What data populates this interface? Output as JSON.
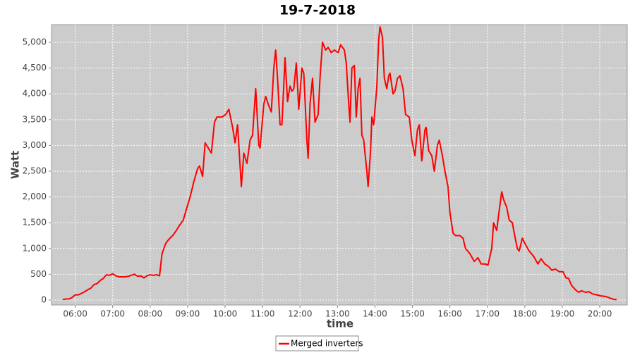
{
  "chart_data": {
    "type": "line",
    "title": "19-7-2018",
    "x_label": "time",
    "y_label": "Watt",
    "x": [
      "05:40",
      "05:45",
      "05:50",
      "05:55",
      "06:00",
      "06:05",
      "06:10",
      "06:15",
      "06:20",
      "06:25",
      "06:30",
      "06:35",
      "06:40",
      "06:45",
      "06:50",
      "06:55",
      "07:00",
      "07:05",
      "07:10",
      "07:15",
      "07:20",
      "07:25",
      "07:30",
      "07:35",
      "07:40",
      "07:45",
      "07:50",
      "07:55",
      "08:00",
      "08:05",
      "08:10",
      "08:15",
      "08:19",
      "08:25",
      "08:30",
      "08:36",
      "08:42",
      "08:47",
      "08:53",
      "08:59",
      "09:04",
      "09:10",
      "09:16",
      "09:19",
      "09:24",
      "09:28",
      "09:33",
      "09:38",
      "09:43",
      "09:47",
      "09:55",
      "10:01",
      "10:06",
      "10:12",
      "10:16",
      "10:20",
      "10:26",
      "10:30",
      "10:35",
      "10:40",
      "10:44",
      "10:49",
      "10:54",
      "10:56",
      "11:02",
      "11:05",
      "11:09",
      "11:14",
      "11:18",
      "11:21",
      "11:24",
      "11:28",
      "11:31",
      "11:36",
      "11:40",
      "11:44",
      "11:47",
      "11:50",
      "11:54",
      "11:58",
      "12:03",
      "12:06",
      "12:11",
      "12:13",
      "12:16",
      "12:20",
      "12:24",
      "12:29",
      "12:32",
      "12:36",
      "12:41",
      "12:45",
      "12:50",
      "12:55",
      "13:01",
      "13:05",
      "13:11",
      "13:14",
      "13:18",
      "13:20",
      "13:23",
      "13:27",
      "13:30",
      "13:33",
      "13:36",
      "13:39",
      "13:42",
      "13:47",
      "13:49",
      "13:53",
      "13:55",
      "13:58",
      "14:03",
      "14:06",
      "14:08",
      "14:12",
      "14:15",
      "14:19",
      "14:22",
      "14:24",
      "14:29",
      "14:32",
      "14:36",
      "14:40",
      "14:45",
      "14:49",
      "14:55",
      "14:59",
      "15:04",
      "15:08",
      "15:11",
      "15:15",
      "15:20",
      "15:22",
      "15:26",
      "15:31",
      "15:35",
      "15:40",
      "15:43",
      "15:48",
      "15:52",
      "15:57",
      "16:00",
      "16:05",
      "16:09",
      "16:16",
      "16:21",
      "16:25",
      "16:32",
      "16:39",
      "16:45",
      "16:50",
      "16:56",
      "17:01",
      "17:07",
      "17:10",
      "17:15",
      "17:18",
      "17:23",
      "17:26",
      "17:31",
      "17:35",
      "17:40",
      "17:43",
      "17:48",
      "17:51",
      "17:56",
      "18:00",
      "18:07",
      "18:14",
      "18:21",
      "18:26",
      "18:32",
      "18:38",
      "18:43",
      "18:49",
      "18:55",
      "19:01",
      "19:06",
      "19:10",
      "19:15",
      "19:21",
      "19:26",
      "19:31",
      "19:37",
      "19:43",
      "19:48",
      "19:55",
      "20:02",
      "20:09",
      "20:16",
      "20:23",
      "20:27"
    ],
    "series": [
      {
        "name": "Merged inverters",
        "color": "#ff0000",
        "values": [
          10,
          20,
          20,
          50,
          100,
          100,
          130,
          160,
          200,
          230,
          300,
          320,
          380,
          420,
          490,
          480,
          510,
          470,
          450,
          450,
          450,
          460,
          480,
          500,
          460,
          470,
          430,
          470,
          490,
          480,
          490,
          470,
          900,
          1100,
          1180,
          1250,
          1350,
          1450,
          1550,
          1800,
          2000,
          2300,
          2550,
          2600,
          2400,
          3050,
          2950,
          2850,
          3450,
          3550,
          3550,
          3600,
          3700,
          3350,
          3050,
          3400,
          2200,
          2850,
          2650,
          3100,
          3200,
          4100,
          3000,
          2950,
          3800,
          3950,
          3800,
          3650,
          4500,
          4850,
          4300,
          3400,
          3400,
          4700,
          3850,
          4150,
          4050,
          4100,
          4600,
          3700,
          4500,
          4400,
          3100,
          2750,
          3800,
          4300,
          3450,
          3600,
          4300,
          5000,
          4850,
          4900,
          4800,
          4850,
          4800,
          4950,
          4850,
          4600,
          3800,
          3450,
          4500,
          4550,
          3550,
          4100,
          4300,
          3200,
          3100,
          2500,
          2200,
          2900,
          3550,
          3400,
          4150,
          5050,
          5300,
          5100,
          4300,
          4100,
          4350,
          4400,
          4000,
          4050,
          4300,
          4350,
          4100,
          3600,
          3550,
          3100,
          2800,
          3300,
          3400,
          2700,
          3300,
          3350,
          2900,
          2800,
          2500,
          3000,
          3100,
          2800,
          2500,
          2200,
          1700,
          1300,
          1250,
          1250,
          1200,
          1000,
          900,
          750,
          820,
          700,
          700,
          680,
          1000,
          1500,
          1350,
          1650,
          2100,
          1950,
          1800,
          1550,
          1500,
          1300,
          1000,
          950,
          1200,
          1100,
          950,
          850,
          700,
          800,
          700,
          650,
          580,
          600,
          550,
          550,
          430,
          420,
          280,
          200,
          150,
          180,
          150,
          160,
          120,
          100,
          80,
          70,
          40,
          10,
          10
        ]
      }
    ],
    "xlim": [
      "05:22",
      "20:44"
    ],
    "xticks": [
      "06:00",
      "07:00",
      "08:00",
      "09:00",
      "10:00",
      "11:00",
      "12:00",
      "13:00",
      "14:00",
      "15:00",
      "16:00",
      "17:00",
      "18:00",
      "19:00",
      "20:00"
    ],
    "ylim": [
      -96,
      5342
    ],
    "yticks": [
      0,
      500,
      {
        "value": 1000,
        "label": "1,000"
      },
      {
        "value": 1500,
        "label": "1,500"
      },
      {
        "value": 2000,
        "label": "2,000"
      },
      {
        "value": 2500,
        "label": "2,500"
      },
      {
        "value": 3000,
        "label": "3,000"
      },
      {
        "value": 3500,
        "label": "3,500"
      },
      {
        "value": 4000,
        "label": "4,000"
      },
      {
        "value": 4500,
        "label": "4,500"
      },
      {
        "value": 5000,
        "label": "5,000"
      }
    ],
    "grid": true,
    "legend": "bottom"
  }
}
